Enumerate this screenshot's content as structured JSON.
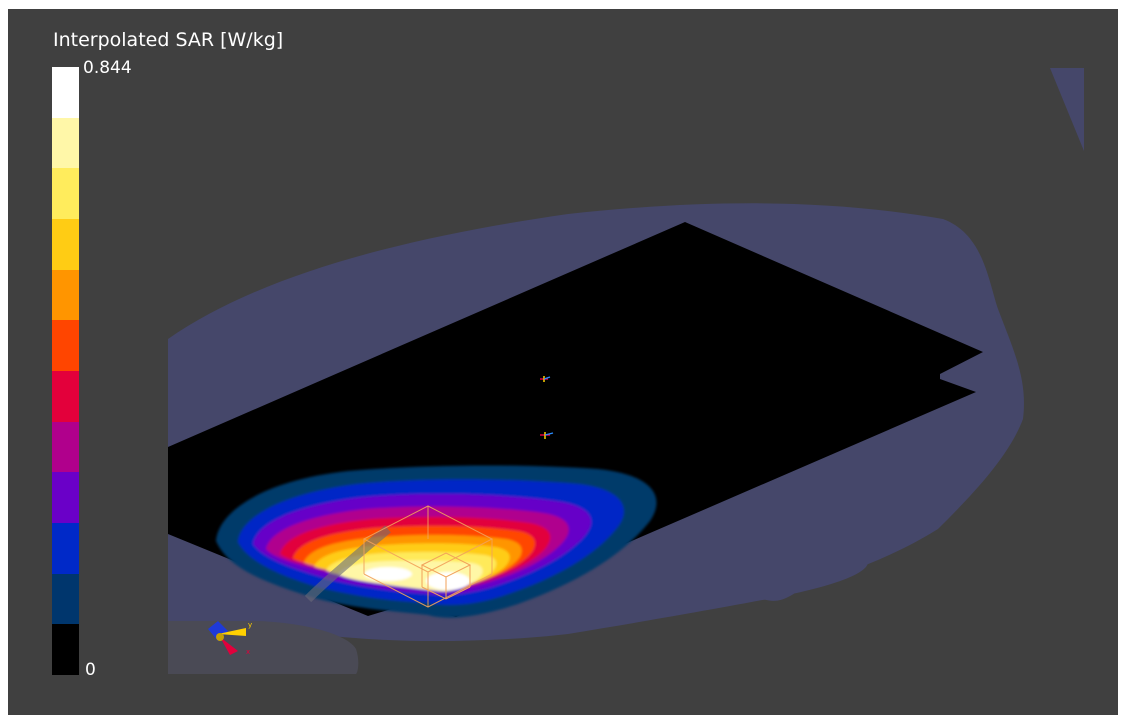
{
  "legend": {
    "title": "Interpolated SAR [W/kg]",
    "max_label": "0.844",
    "min_label": "0",
    "colors": [
      "#ffffff",
      "#fff7a8",
      "#ffec5c",
      "#ffcc14",
      "#ff9500",
      "#ff4500",
      "#e3003b",
      "#b0008c",
      "#6a00c8",
      "#0029c8",
      "#00366d",
      "#000000"
    ]
  },
  "colors": {
    "background": "#404040",
    "outer_field": "#444466",
    "phantom_plane": "#000000",
    "probe_box": "#f2a25a"
  }
}
